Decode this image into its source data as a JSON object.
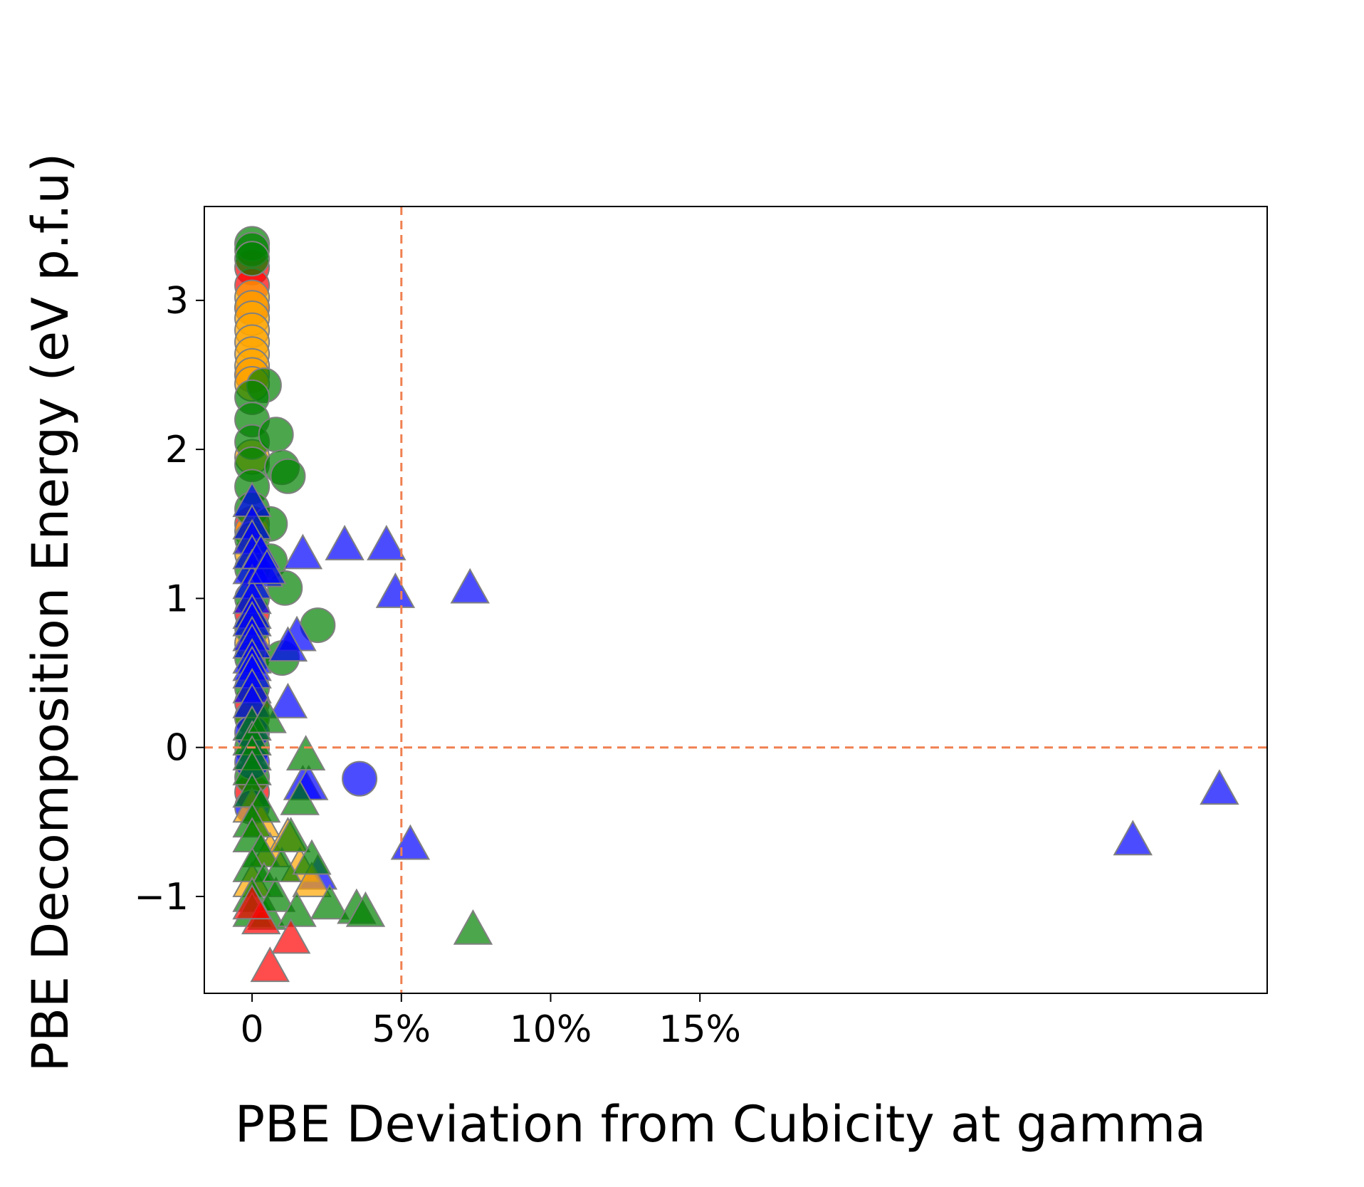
{
  "chart_data": {
    "type": "scatter",
    "title": "",
    "xlabel": "PBE Deviation from Cubicity at gamma",
    "ylabel": "PBE Decomposition Energy (eV p.f.u)",
    "xlim": [
      -1.6,
      34.0
    ],
    "ylim": [
      -1.65,
      3.63
    ],
    "grid": false,
    "x_ticks": [
      0,
      5,
      10,
      15
    ],
    "x_tick_labels": [
      "0",
      "5%",
      "10%",
      "15%"
    ],
    "y_ticks": [
      -1,
      0,
      1,
      2,
      3
    ],
    "y_tick_labels": [
      "−1",
      "0",
      "1",
      "2",
      "3"
    ],
    "reference_lines": [
      {
        "orientation": "vertical",
        "value": 5,
        "style": "dashed",
        "color": "#f08050"
      },
      {
        "orientation": "horizontal",
        "value": 0,
        "style": "dashed",
        "color": "#f08050"
      }
    ],
    "series": [
      {
        "marker": "circle",
        "color": "#ff0000",
        "points": [
          [
            0,
            3.22
          ],
          [
            0,
            3.1
          ],
          [
            0,
            2.95
          ],
          [
            0,
            2.5
          ],
          [
            0,
            1.5
          ],
          [
            0,
            0.9
          ],
          [
            0,
            0.3
          ],
          [
            0,
            -0.3
          ]
        ]
      },
      {
        "marker": "circle",
        "color": "#ffa500",
        "points": [
          [
            0,
            3.02
          ],
          [
            0,
            2.95
          ],
          [
            0,
            2.88
          ],
          [
            0,
            2.8
          ],
          [
            0,
            2.72
          ],
          [
            0,
            2.64
          ],
          [
            0,
            2.56
          ],
          [
            0,
            2.5
          ],
          [
            0,
            2.44
          ],
          [
            0,
            1.95
          ],
          [
            0,
            1.45
          ],
          [
            0,
            1.3
          ],
          [
            0,
            0.7
          ],
          [
            0,
            0.2
          ]
        ]
      },
      {
        "marker": "circle",
        "color": "#008000",
        "points": [
          [
            0,
            3.38
          ],
          [
            0,
            3.34
          ],
          [
            0,
            3.28
          ],
          [
            0.4,
            2.43
          ],
          [
            0,
            2.35
          ],
          [
            0,
            2.2
          ],
          [
            0,
            2.05
          ],
          [
            0,
            1.9
          ],
          [
            0,
            1.75
          ],
          [
            0,
            1.6
          ],
          [
            0,
            1.4
          ],
          [
            0,
            1.2
          ],
          [
            0,
            1.0
          ],
          [
            0,
            0.8
          ],
          [
            0,
            0.6
          ],
          [
            0,
            0.4
          ],
          [
            0,
            0.2
          ],
          [
            0,
            0.0
          ],
          [
            0,
            -0.2
          ],
          [
            0.8,
            2.1
          ],
          [
            1.0,
            1.88
          ],
          [
            1.2,
            1.82
          ],
          [
            0.6,
            1.5
          ],
          [
            0.6,
            1.25
          ],
          [
            1.1,
            1.07
          ],
          [
            2.2,
            0.82
          ],
          [
            1.0,
            0.6
          ]
        ]
      },
      {
        "marker": "circle",
        "color": "#0000ff",
        "points": [
          [
            3.6,
            -0.21
          ],
          [
            0,
            0.1
          ],
          [
            0,
            -0.1
          ],
          [
            0,
            -0.4
          ]
        ]
      },
      {
        "marker": "triangle",
        "color": "#0000ff",
        "points": [
          [
            0,
            1.65
          ],
          [
            0,
            1.5
          ],
          [
            0,
            1.4
          ],
          [
            0,
            1.3
          ],
          [
            0,
            1.2
          ],
          [
            0.4,
            1.18
          ],
          [
            0,
            1.1
          ],
          [
            0,
            1.0
          ],
          [
            0,
            0.9
          ],
          [
            0,
            0.85
          ],
          [
            0,
            0.75
          ],
          [
            0,
            0.7
          ],
          [
            0,
            0.6
          ],
          [
            0,
            0.55
          ],
          [
            0,
            0.5
          ],
          [
            0,
            0.4
          ],
          [
            0,
            0.3
          ],
          [
            0.3,
            1.3
          ],
          [
            0.5,
            1.2
          ],
          [
            1.5,
            0.75
          ],
          [
            1.2,
            0.68
          ],
          [
            1.2,
            0.3
          ],
          [
            1.7,
            -0.25
          ],
          [
            1.9,
            -0.25
          ],
          [
            2.2,
            -0.85
          ],
          [
            3.1,
            1.36
          ],
          [
            4.5,
            1.36
          ],
          [
            1.7,
            1.3
          ],
          [
            4.8,
            1.04
          ],
          [
            7.3,
            1.07
          ],
          [
            5.3,
            -0.65
          ],
          [
            29.5,
            -0.62
          ],
          [
            32.4,
            -0.28
          ]
        ]
      },
      {
        "marker": "triangle",
        "color": "#ffa500",
        "points": [
          [
            0,
            -0.4
          ],
          [
            0.3,
            -0.5
          ],
          [
            0.6,
            -0.7
          ],
          [
            1.2,
            -0.6
          ],
          [
            1.6,
            -0.8
          ],
          [
            2.0,
            -0.9
          ],
          [
            0,
            -0.9
          ]
        ]
      },
      {
        "marker": "triangle",
        "color": "#008000",
        "points": [
          [
            0,
            0.15
          ],
          [
            0,
            0.05
          ],
          [
            0,
            -0.05
          ],
          [
            0,
            -0.15
          ],
          [
            0,
            -0.3
          ],
          [
            0.3,
            -0.4
          ],
          [
            0,
            -0.5
          ],
          [
            0,
            -0.6
          ],
          [
            0.3,
            -0.7
          ],
          [
            0,
            -0.8
          ],
          [
            0.4,
            -0.9
          ],
          [
            0,
            -1.0
          ],
          [
            0,
            -1.1
          ],
          [
            0.5,
            -1.12
          ],
          [
            0.8,
            -1.0
          ],
          [
            1.0,
            -0.8
          ],
          [
            1.3,
            -0.6
          ],
          [
            1.8,
            -0.05
          ],
          [
            1.6,
            -0.35
          ],
          [
            2.0,
            -0.75
          ],
          [
            1.5,
            -1.1
          ],
          [
            2.6,
            -1.05
          ],
          [
            3.5,
            -1.08
          ],
          [
            3.8,
            -1.1
          ],
          [
            7.4,
            -1.22
          ],
          [
            0.5,
            0.2
          ]
        ]
      },
      {
        "marker": "triangle",
        "color": "#ff0000",
        "points": [
          [
            0.6,
            -1.47
          ],
          [
            1.3,
            -1.28
          ],
          [
            0.3,
            -1.15
          ],
          [
            0,
            -1.05
          ]
        ]
      }
    ]
  }
}
